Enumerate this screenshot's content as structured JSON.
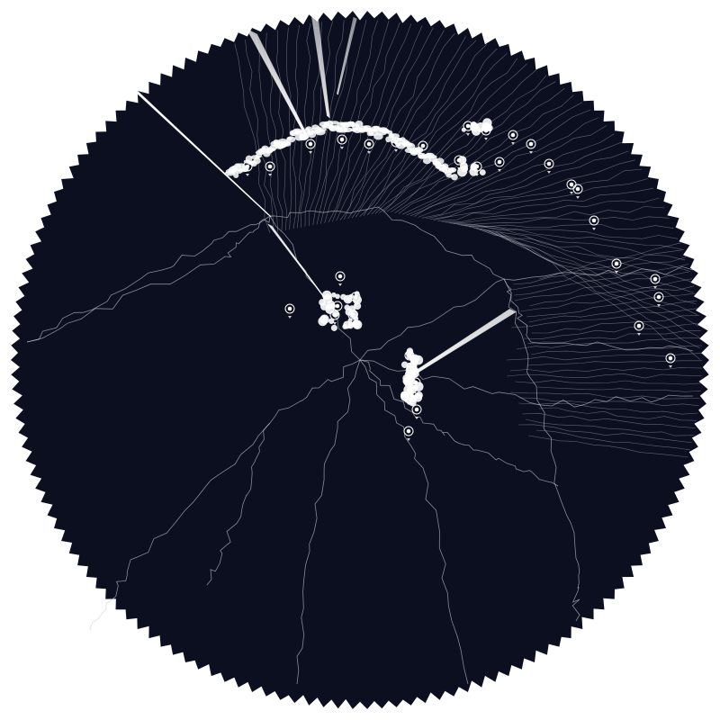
{
  "colors": {
    "page_background": "#ffffff",
    "disc_fill": "#0b0f1f",
    "edge_stroke": "#c9ccd6",
    "node_stroke": "#ffffff",
    "node_fill": "#ffffff"
  },
  "icons": {
    "node": "circle-target-icon",
    "node_marker": "triangle-down-icon"
  }
}
